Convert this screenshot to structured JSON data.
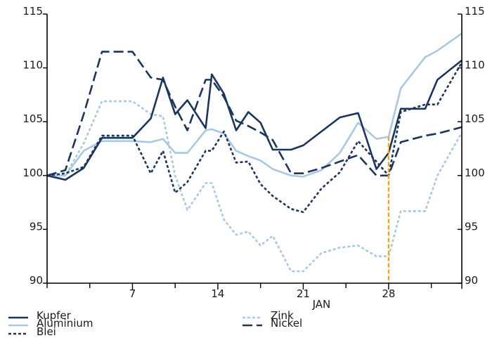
{
  "chart_data": {
    "type": "line",
    "xlabel": "JAN",
    "x_ticks": [
      7,
      14,
      21,
      28
    ],
    "x_range": [
      0,
      34
    ],
    "ylim": [
      90,
      115
    ],
    "y_ticks": [
      90,
      95,
      100,
      105,
      110,
      115
    ],
    "grid": false,
    "legend_position": "bottom",
    "highlight_x": 28,
    "highlight_color": "#f4a31b",
    "x": [
      0,
      1.5,
      3,
      4.5,
      6,
      7,
      8.5,
      9.5,
      10.5,
      11.5,
      13,
      13.5,
      14.5,
      15.5,
      16.5,
      17.5,
      18.5,
      20,
      21,
      22.5,
      24,
      25.5,
      27,
      28,
      29,
      31,
      32,
      34
    ],
    "series": [
      {
        "name": "Kupfer",
        "color": "#1b355d",
        "dash": "solid",
        "values": [
          100,
          99.6,
          100.7,
          103.5,
          103.5,
          103.5,
          105.3,
          109.1,
          105.7,
          107.0,
          104.4,
          109.4,
          107.6,
          104.2,
          105.9,
          104.9,
          102.4,
          102.4,
          102.8,
          104.1,
          105.4,
          105.8,
          100.6,
          102.1,
          106.2,
          106.2,
          108.9,
          110.7
        ]
      },
      {
        "name": "Aluminium",
        "color": "#a9c8e3",
        "dash": "solid",
        "values": [
          100,
          100,
          102.3,
          103.2,
          103.2,
          103.2,
          103.1,
          103.4,
          102.1,
          102.1,
          104.2,
          104.3,
          103.9,
          102.3,
          101.8,
          101.4,
          100.6,
          100.0,
          99.9,
          100.5,
          102.1,
          104.9,
          103.4,
          103.6,
          108.1,
          111.0,
          111.6,
          113.2
        ]
      },
      {
        "name": "Blei",
        "color": "#1b355d",
        "dash": "dotted",
        "values": [
          100,
          100.2,
          100.8,
          103.7,
          103.7,
          103.7,
          100.2,
          102.3,
          98.4,
          99.4,
          102.3,
          102.3,
          104.1,
          101.2,
          101.3,
          99.2,
          98.1,
          96.9,
          96.6,
          98.8,
          100.3,
          103.2,
          101.3,
          100.0,
          105.9,
          106.6,
          106.6,
          110.5
        ]
      },
      {
        "name": "Zink",
        "color": "#a9c8e3",
        "dash": "dotted",
        "values": [
          100,
          100,
          103.0,
          106.9,
          106.9,
          106.9,
          105.7,
          105.5,
          100.0,
          96.8,
          99.3,
          99.3,
          95.9,
          94.5,
          94.8,
          93.5,
          94.4,
          91.1,
          91.1,
          92.8,
          93.3,
          93.5,
          92.5,
          92.5,
          96.7,
          96.7,
          100.0,
          104.0
        ]
      },
      {
        "name": "Nickel",
        "color": "#1b355d",
        "dash": "dashed",
        "values": [
          100,
          100.5,
          105.7,
          111.5,
          111.5,
          111.5,
          109.1,
          108.9,
          106.4,
          104.2,
          108.9,
          108.9,
          107.3,
          105.1,
          104.6,
          104.0,
          103.3,
          100.2,
          100.2,
          100.7,
          101.3,
          101.9,
          100.0,
          100.0,
          103.1,
          103.7,
          103.9,
          104.5
        ]
      }
    ]
  }
}
